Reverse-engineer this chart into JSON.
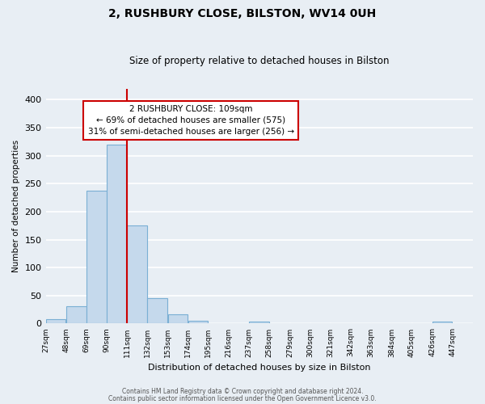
{
  "title": "2, RUSHBURY CLOSE, BILSTON, WV14 0UH",
  "subtitle": "Size of property relative to detached houses in Bilston",
  "xlabel": "Distribution of detached houses by size in Bilston",
  "ylabel": "Number of detached properties",
  "bin_labels": [
    "27sqm",
    "48sqm",
    "69sqm",
    "90sqm",
    "111sqm",
    "132sqm",
    "153sqm",
    "174sqm",
    "195sqm",
    "216sqm",
    "237sqm",
    "258sqm",
    "279sqm",
    "300sqm",
    "321sqm",
    "342sqm",
    "363sqm",
    "384sqm",
    "405sqm",
    "426sqm",
    "447sqm"
  ],
  "bin_edges": [
    27,
    48,
    69,
    90,
    111,
    132,
    153,
    174,
    195,
    216,
    237,
    258,
    279,
    300,
    321,
    342,
    363,
    384,
    405,
    426,
    447,
    468
  ],
  "bar_heights": [
    8,
    31,
    238,
    320,
    175,
    45,
    17,
    5,
    0,
    0,
    4,
    1,
    0,
    0,
    0,
    0,
    0,
    0,
    0,
    3,
    0
  ],
  "bar_color": "#c5d9ec",
  "bar_edge_color": "#7aafd4",
  "vline_x": 111,
  "vline_color": "#cc0000",
  "ylim": [
    0,
    420
  ],
  "yticks": [
    0,
    50,
    100,
    150,
    200,
    250,
    300,
    350,
    400
  ],
  "annotation_text": "2 RUSHBURY CLOSE: 109sqm\n← 69% of detached houses are smaller (575)\n31% of semi-detached houses are larger (256) →",
  "annotation_box_color": "#ffffff",
  "annotation_box_edgecolor": "#cc0000",
  "footer_line1": "Contains HM Land Registry data © Crown copyright and database right 2024.",
  "footer_line2": "Contains public sector information licensed under the Open Government Licence v3.0.",
  "background_color": "#e8eef4",
  "grid_color": "#ffffff"
}
